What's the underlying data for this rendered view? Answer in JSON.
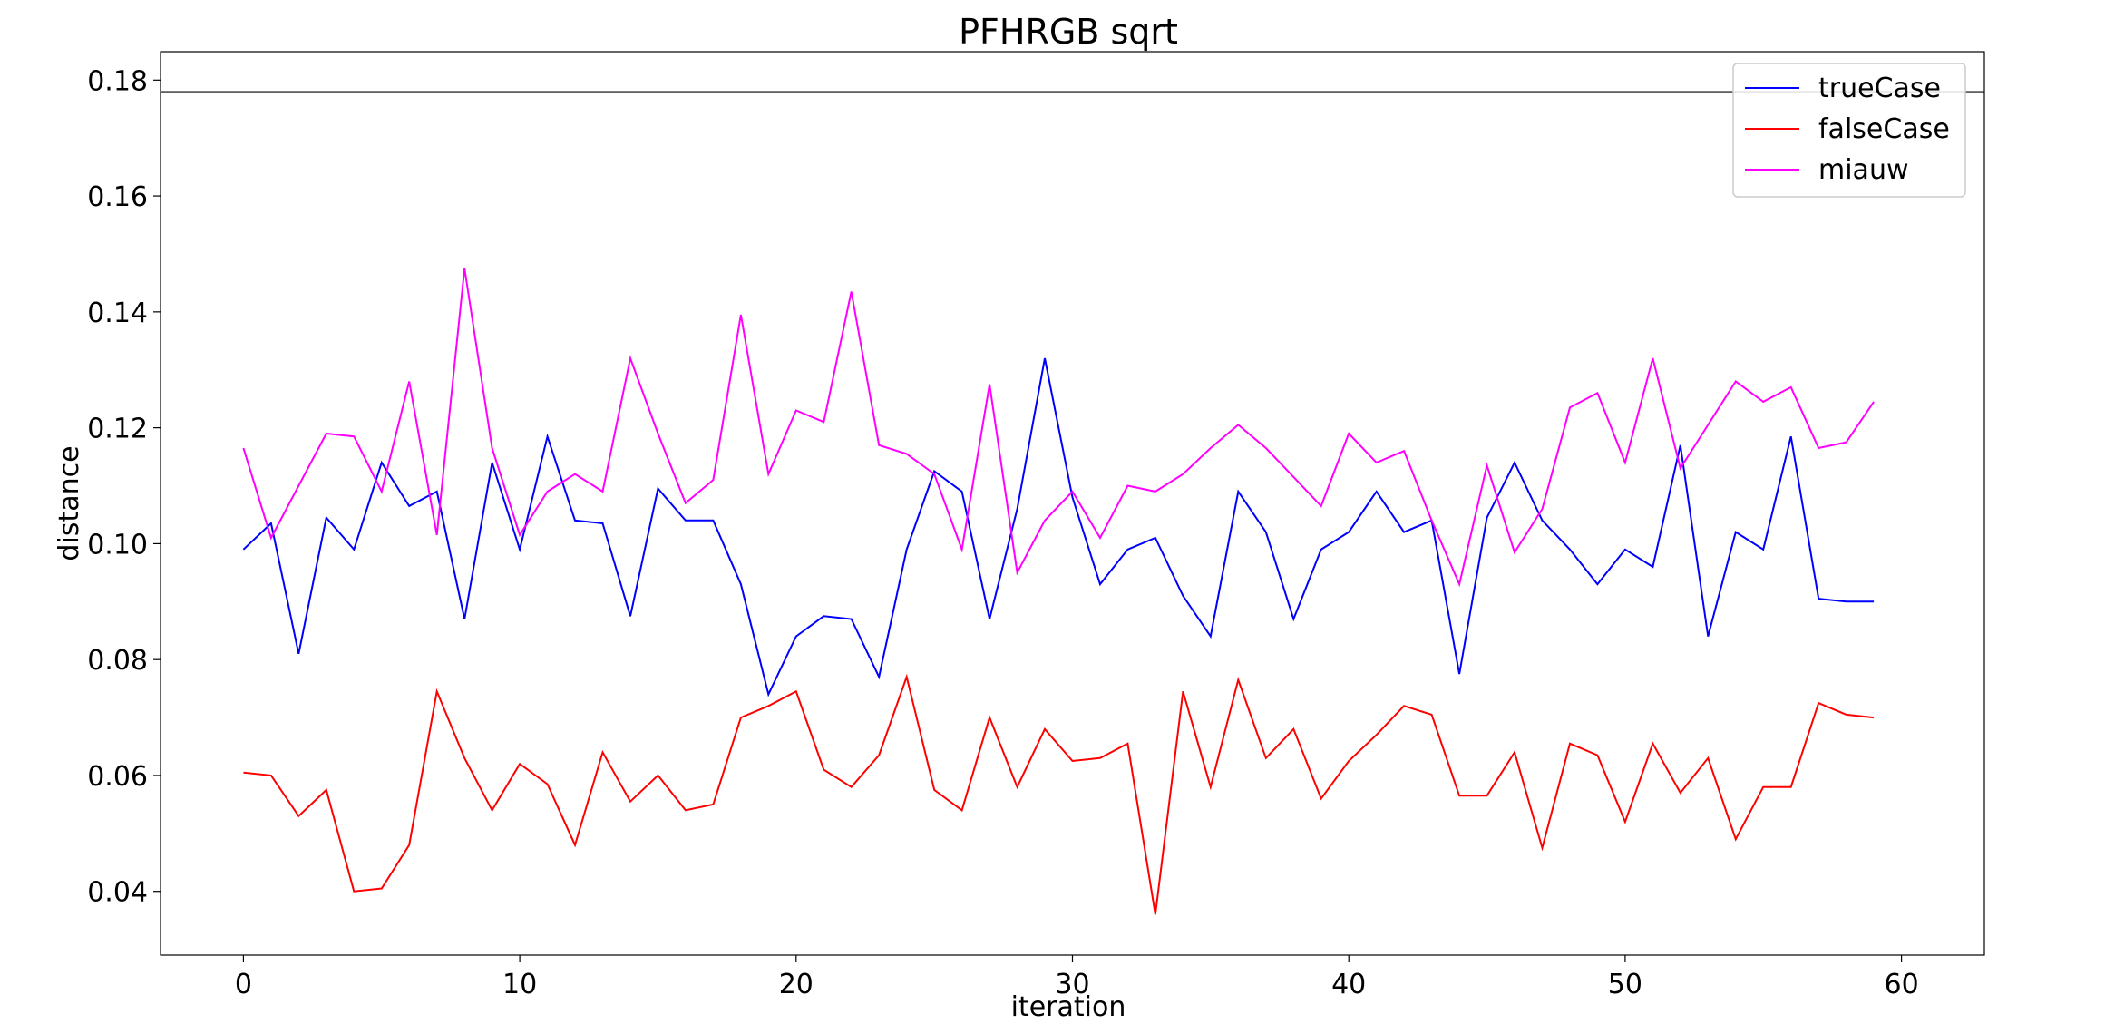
{
  "chart_data": {
    "type": "line",
    "title": "PFHRGB sqrt",
    "xlabel": "iteration",
    "ylabel": "distance",
    "xlim": [
      -3,
      63
    ],
    "ylim": [
      0.029,
      0.1849
    ],
    "xticks": [
      0,
      10,
      20,
      30,
      40,
      50,
      60
    ],
    "yticks": [
      0.04,
      0.06,
      0.08,
      0.1,
      0.12,
      0.14,
      0.16,
      0.18
    ],
    "xtick_labels": [
      "0",
      "10",
      "20",
      "30",
      "40",
      "50",
      "60"
    ],
    "ytick_labels": [
      "0.04",
      "0.06",
      "0.08",
      "0.10",
      "0.12",
      "0.14",
      "0.16",
      "0.18"
    ],
    "hline": 0.178,
    "grid": false,
    "legend_position": "top-right",
    "series": [
      {
        "name": "trueCase",
        "color": "#0000ff",
        "values": [
          0.099,
          0.1035,
          0.081,
          0.1045,
          0.099,
          0.114,
          0.1065,
          0.109,
          0.087,
          0.114,
          0.099,
          0.1185,
          0.104,
          0.1035,
          0.0875,
          0.1095,
          0.104,
          0.104,
          0.093,
          0.074,
          0.084,
          0.0875,
          0.087,
          0.077,
          0.099,
          0.1125,
          0.109,
          0.087,
          0.106,
          0.132,
          0.108,
          0.093,
          0.099,
          0.101,
          0.091,
          0.084,
          0.109,
          0.102,
          0.087,
          0.099,
          0.102,
          0.109,
          0.102,
          0.104,
          0.0775,
          0.1045,
          0.114,
          0.104,
          0.099,
          0.093,
          0.099,
          0.096,
          0.117,
          0.084,
          0.102,
          0.099,
          0.1185,
          0.0905,
          0.09,
          0.09
        ]
      },
      {
        "name": "falseCase",
        "color": "#ff0000",
        "values": [
          0.0605,
          0.06,
          0.053,
          0.0575,
          0.04,
          0.0405,
          0.048,
          0.0745,
          0.063,
          0.054,
          0.062,
          0.0585,
          0.048,
          0.064,
          0.0555,
          0.06,
          0.054,
          0.055,
          0.07,
          0.072,
          0.0745,
          0.061,
          0.058,
          0.0635,
          0.077,
          0.0575,
          0.054,
          0.07,
          0.058,
          0.068,
          0.0625,
          0.063,
          0.0655,
          0.036,
          0.0745,
          0.058,
          0.0765,
          0.063,
          0.068,
          0.056,
          0.0625,
          0.067,
          0.072,
          0.0705,
          0.0565,
          0.0565,
          0.064,
          0.0475,
          0.0655,
          0.0635,
          0.052,
          0.0655,
          0.057,
          0.063,
          0.049,
          0.058,
          0.058,
          0.0725,
          0.0705,
          0.07
        ]
      },
      {
        "name": "miauw",
        "color": "#ff00ff",
        "values": [
          0.1165,
          0.101,
          0.11,
          0.119,
          0.1185,
          0.109,
          0.128,
          0.1015,
          0.1475,
          0.1165,
          0.1015,
          0.109,
          0.112,
          0.109,
          0.132,
          0.119,
          0.107,
          0.111,
          0.1395,
          0.112,
          0.123,
          0.121,
          0.1435,
          0.117,
          0.1155,
          0.112,
          0.099,
          0.1275,
          0.095,
          0.104,
          0.109,
          0.101,
          0.11,
          0.109,
          0.112,
          0.1165,
          0.1205,
          0.1165,
          0.1115,
          0.1065,
          0.119,
          0.114,
          0.116,
          0.104,
          0.093,
          0.1135,
          0.0985,
          0.106,
          0.1235,
          0.126,
          0.114,
          0.132,
          0.113,
          0.1205,
          0.128,
          0.1245,
          0.127,
          0.1165,
          0.1175,
          0.1245
        ]
      }
    ]
  }
}
